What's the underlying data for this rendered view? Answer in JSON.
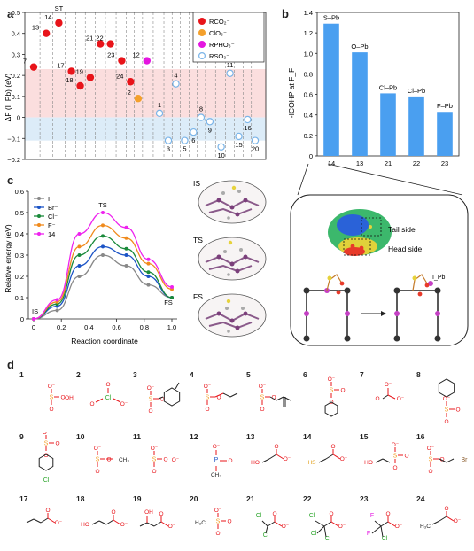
{
  "panels": {
    "a": "a",
    "b": "b",
    "c": "c",
    "d": "d"
  },
  "colors": {
    "rco2": "#e8141a",
    "clo3": "#f4a02c",
    "rpho3": "#e416e0",
    "rso3": "#7ab4e8",
    "pos_band": "#fbdede",
    "neg_band": "#dcecf8",
    "bar": "#4a9ff0",
    "I": "#888888",
    "Br": "#1c54c6",
    "Cl": "#1a8a3a",
    "F": "#f08a1c",
    "s14": "#ee22ee"
  },
  "chart_data": [
    {
      "type": "scatter",
      "ylabel": "ΔF (I_Pb) (eV)",
      "ylim": [
        -0.2,
        0.5
      ],
      "yticks": [
        "0.5",
        "0.4",
        "0.3",
        "0.2",
        "0.1",
        "0",
        "−0.1",
        "−0.2"
      ],
      "legend": [
        {
          "label": "RCO₂⁻",
          "color": "#e8141a",
          "fill": true
        },
        {
          "label": "ClO₃⁻",
          "color": "#f4a02c",
          "fill": true
        },
        {
          "label": "RPHO₃⁻",
          "color": "#e416e0",
          "fill": true
        },
        {
          "label": "RSO₃⁻",
          "color": "#7ab4e8",
          "fill": false
        }
      ],
      "st_label": "ST",
      "points": [
        {
          "id": "7",
          "x": 1,
          "y": 0.24,
          "cls": "rco2"
        },
        {
          "id": "13",
          "x": 2,
          "y": 0.4,
          "cls": "rco2"
        },
        {
          "id": "14",
          "x": 3,
          "y": 0.45,
          "cls": "rco2"
        },
        {
          "id": "17",
          "x": 4,
          "y": 0.22,
          "cls": "rco2"
        },
        {
          "id": "18",
          "x": 4.7,
          "y": 0.15,
          "cls": "rco2"
        },
        {
          "id": "19",
          "x": 5.5,
          "y": 0.19,
          "cls": "rco2"
        },
        {
          "id": "21",
          "x": 6.3,
          "y": 0.35,
          "cls": "rco2"
        },
        {
          "id": "22",
          "x": 7.1,
          "y": 0.35,
          "cls": "rco2"
        },
        {
          "id": "23",
          "x": 8,
          "y": 0.27,
          "cls": "rco2"
        },
        {
          "id": "24",
          "x": 8.7,
          "y": 0.17,
          "cls": "rco2"
        },
        {
          "id": "2",
          "x": 9.3,
          "y": 0.09,
          "cls": "clo3"
        },
        {
          "id": "12",
          "x": 10,
          "y": 0.27,
          "cls": "rpho3"
        },
        {
          "id": "1",
          "x": 11,
          "y": 0.02,
          "cls": "rso3"
        },
        {
          "id": "3",
          "x": 11.7,
          "y": -0.11,
          "cls": "rso3"
        },
        {
          "id": "4",
          "x": 12.3,
          "y": 0.16,
          "cls": "rso3"
        },
        {
          "id": "5",
          "x": 13,
          "y": -0.11,
          "cls": "rso3"
        },
        {
          "id": "6",
          "x": 13.7,
          "y": -0.07,
          "cls": "rso3"
        },
        {
          "id": "8",
          "x": 14.3,
          "y": 0.0,
          "cls": "rso3"
        },
        {
          "id": "9",
          "x": 15,
          "y": -0.02,
          "cls": "rso3"
        },
        {
          "id": "10",
          "x": 15.9,
          "y": -0.14,
          "cls": "rso3"
        },
        {
          "id": "11",
          "x": 16.6,
          "y": 0.21,
          "cls": "rso3"
        },
        {
          "id": "15",
          "x": 17.3,
          "y": -0.09,
          "cls": "rso3"
        },
        {
          "id": "16",
          "x": 18,
          "y": -0.01,
          "cls": "rso3"
        },
        {
          "id": "20",
          "x": 18.6,
          "y": -0.11,
          "cls": "rso3"
        }
      ]
    },
    {
      "type": "bar",
      "ylabel": "-ICOHP at F_F",
      "ylim": [
        0,
        1.4
      ],
      "yticks": [
        "0",
        "0.2",
        "0.4",
        "0.6",
        "0.8",
        "1.0",
        "1.2",
        "1.4"
      ],
      "categories": [
        "14",
        "13",
        "21",
        "22",
        "23"
      ],
      "values": [
        1.29,
        1.01,
        0.61,
        0.58,
        0.43
      ],
      "bar_labels": [
        "S–Pb",
        "O–Pb",
        "Cl–Pb",
        "Cl–Pb",
        "F–Pb"
      ]
    },
    {
      "type": "line",
      "xlabel": "Reaction coordinate",
      "ylabel": "Relative energy (eV)",
      "ylim": [
        0,
        0.6
      ],
      "xlim": [
        0,
        1
      ],
      "xticks": [
        "0",
        "0.2",
        "0.4",
        "0.6",
        "0.8",
        "1.0"
      ],
      "yticks": [
        "0",
        "0.1",
        "0.2",
        "0.3",
        "0.4",
        "0.5",
        "0.6"
      ],
      "annotations": {
        "IS": "IS",
        "TS": "TS",
        "FS": "FS"
      },
      "series": [
        {
          "name": "I⁻",
          "key": "I",
          "x": [
            0,
            0.17,
            0.33,
            0.5,
            0.67,
            0.83,
            1.0
          ],
          "values": [
            0.0,
            0.04,
            0.2,
            0.3,
            0.25,
            0.16,
            0.1
          ]
        },
        {
          "name": "Br⁻",
          "key": "Br",
          "x": [
            0,
            0.17,
            0.33,
            0.5,
            0.67,
            0.83,
            1.0
          ],
          "values": [
            0.0,
            0.06,
            0.25,
            0.34,
            0.3,
            0.2,
            0.1
          ]
        },
        {
          "name": "Cl⁻",
          "key": "Cl",
          "x": [
            0,
            0.17,
            0.33,
            0.5,
            0.67,
            0.83,
            1.0
          ],
          "values": [
            0.0,
            0.07,
            0.3,
            0.39,
            0.33,
            0.22,
            0.1
          ]
        },
        {
          "name": "F⁻",
          "key": "F",
          "x": [
            0,
            0.17,
            0.33,
            0.5,
            0.67,
            0.83,
            1.0
          ],
          "values": [
            0.0,
            0.08,
            0.34,
            0.44,
            0.38,
            0.26,
            0.14
          ]
        },
        {
          "name": "14",
          "key": "s14",
          "x": [
            0,
            0.17,
            0.33,
            0.5,
            0.67,
            0.83,
            1.0
          ],
          "values": [
            0.0,
            0.09,
            0.4,
            0.5,
            0.43,
            0.28,
            0.15
          ]
        }
      ]
    }
  ],
  "structures": {
    "IS": "IS",
    "TS": "TS",
    "FS": "FS"
  },
  "inset": {
    "tail": "Tail side",
    "head": "Head side",
    "ipb": "I_Pb"
  },
  "molecules": [
    {
      "n": "1"
    },
    {
      "n": "2"
    },
    {
      "n": "3"
    },
    {
      "n": "4"
    },
    {
      "n": "5"
    },
    {
      "n": "6"
    },
    {
      "n": "7"
    },
    {
      "n": "8"
    },
    {
      "n": "9"
    },
    {
      "n": "10"
    },
    {
      "n": "11"
    },
    {
      "n": "12"
    },
    {
      "n": "13"
    },
    {
      "n": "14"
    },
    {
      "n": "15"
    },
    {
      "n": "16"
    },
    {
      "n": "17"
    },
    {
      "n": "18"
    },
    {
      "n": "19"
    },
    {
      "n": "20"
    },
    {
      "n": "21"
    },
    {
      "n": "22"
    },
    {
      "n": "23"
    },
    {
      "n": "24"
    }
  ],
  "mol_text": {
    "Cl": "Cl",
    "Br": "Br",
    "F": "F",
    "OH": "OH",
    "HO": "HO",
    "HS": "HS",
    "CH3": "CH₃",
    "H3C": "H₃C",
    "O": "O",
    "Om": "O⁻"
  }
}
